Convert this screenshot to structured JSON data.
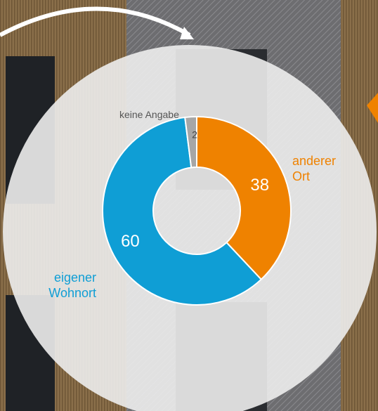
{
  "chart_data": {
    "type": "donut",
    "categories": [
      "anderer\nOrt",
      "eigener\nWohnort",
      "keine Angabe"
    ],
    "values": [
      38,
      60,
      2
    ],
    "colors": [
      "#ef8200",
      "#0f9ed5",
      "#a6a6a6"
    ]
  }
}
